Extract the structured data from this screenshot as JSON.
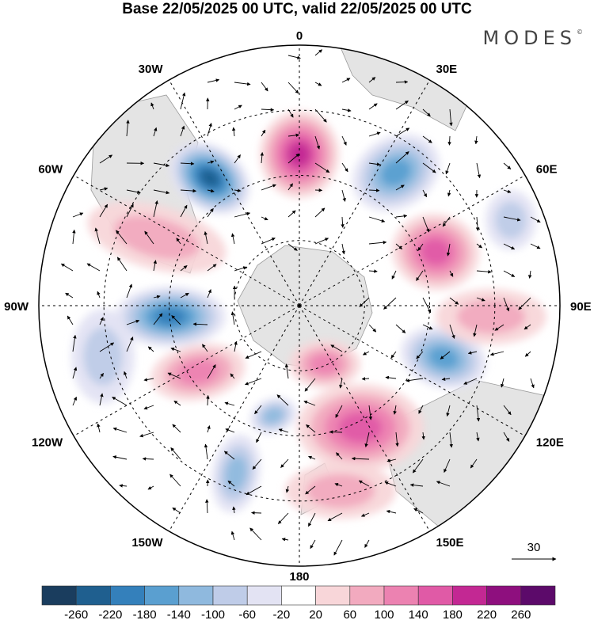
{
  "title": "Base 22/05/2025 00 UTC, valid 22/05/2025 00 UTC",
  "logo": {
    "text": "MODES",
    "mark": "©"
  },
  "map": {
    "projection": "south-polar-stereographic",
    "meridian_labels": [
      "0",
      "30E",
      "60E",
      "90E",
      "120E",
      "150E",
      "180",
      "150W",
      "120W",
      "90W",
      "60W",
      "30W"
    ],
    "latitude_circles": 3,
    "reference_vector": {
      "label": "30"
    },
    "anomaly_centers": [
      {
        "sign": "negative",
        "value": -240
      },
      {
        "sign": "positive",
        "value": 200
      },
      {
        "sign": "negative",
        "value": -160
      },
      {
        "sign": "positive",
        "value": 160
      },
      {
        "sign": "negative",
        "value": -80
      },
      {
        "sign": "negative",
        "value": -200
      },
      {
        "sign": "positive",
        "value": 60
      },
      {
        "sign": "negative",
        "value": -100
      },
      {
        "sign": "negative",
        "value": -120
      },
      {
        "sign": "positive",
        "value": 120
      },
      {
        "sign": "negative",
        "value": -140
      },
      {
        "sign": "positive",
        "value": 100
      },
      {
        "sign": "positive",
        "value": 140
      },
      {
        "sign": "positive",
        "value": 60
      },
      {
        "sign": "positive",
        "value": 60
      },
      {
        "sign": "negative",
        "value": -60
      }
    ]
  },
  "colorbar": {
    "ticks": [
      "-260",
      "-220",
      "-180",
      "-140",
      "-100",
      "-60",
      "-20",
      "20",
      "60",
      "100",
      "140",
      "180",
      "220",
      "260"
    ],
    "colors": [
      "#1a3d5e",
      "#1f5f8f",
      "#3480bb",
      "#5a9fd0",
      "#8fb9de",
      "#bfcce8",
      "#e3e3f3",
      "#ffffff",
      "#f8d6d9",
      "#f2aabf",
      "#ec82b1",
      "#e05aa6",
      "#c32893",
      "#8e0f7e",
      "#5c0a6a"
    ]
  }
}
